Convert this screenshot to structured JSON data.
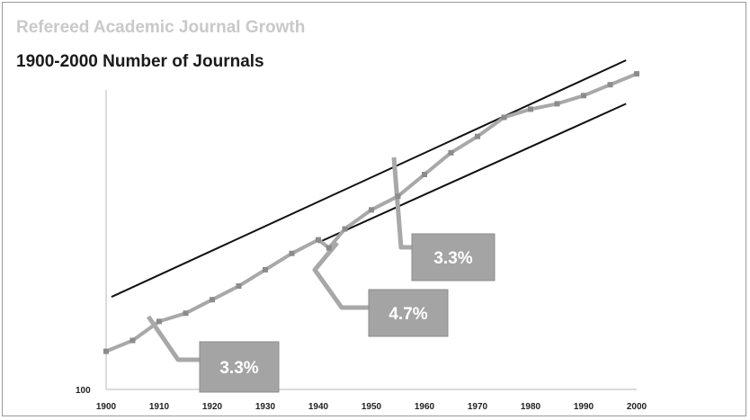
{
  "chart_data": {
    "type": "line",
    "title": "Refereed Academic Journal Growth",
    "subtitle": "1900-2000 Number of Journals",
    "xlabel": "",
    "ylabel": "",
    "y_scale": "log",
    "y_tick_label": "100",
    "x_ticks": [
      1900,
      1910,
      1920,
      1930,
      1940,
      1950,
      1960,
      1970,
      1980,
      1990,
      2000
    ],
    "xlim": [
      1900,
      2000
    ],
    "grid": false,
    "series": [
      {
        "color": "#a8a8a8",
        "points": [
          [
            1900,
            0.14
          ],
          [
            1905,
            0.18
          ],
          [
            1910,
            0.25
          ],
          [
            1915,
            0.28
          ],
          [
            1920,
            0.33
          ],
          [
            1925,
            0.38
          ],
          [
            1930,
            0.44
          ],
          [
            1935,
            0.5
          ],
          [
            1940,
            0.55
          ],
          [
            1942,
            0.52
          ],
          [
            1945,
            0.59
          ],
          [
            1950,
            0.66
          ],
          [
            1955,
            0.71
          ],
          [
            1960,
            0.79
          ],
          [
            1965,
            0.87
          ],
          [
            1970,
            0.93
          ],
          [
            1975,
            1.0
          ],
          [
            1980,
            1.03
          ],
          [
            1985,
            1.05
          ],
          [
            1990,
            1.08
          ],
          [
            1995,
            1.12
          ],
          [
            2000,
            1.16
          ]
        ]
      }
    ],
    "trend_lines": [
      {
        "color": "#111111",
        "points": [
          [
            1901,
            0.34
          ],
          [
            1998,
            1.21
          ]
        ]
      },
      {
        "color": "#111111",
        "points": [
          [
            1940,
            0.54
          ],
          [
            1998,
            1.05
          ]
        ]
      }
    ],
    "annotations": [
      {
        "text": "3.3%",
        "position": "bottom-left"
      },
      {
        "text": "4.7%",
        "position": "center"
      },
      {
        "text": "3.3%",
        "position": "center-right"
      }
    ]
  }
}
